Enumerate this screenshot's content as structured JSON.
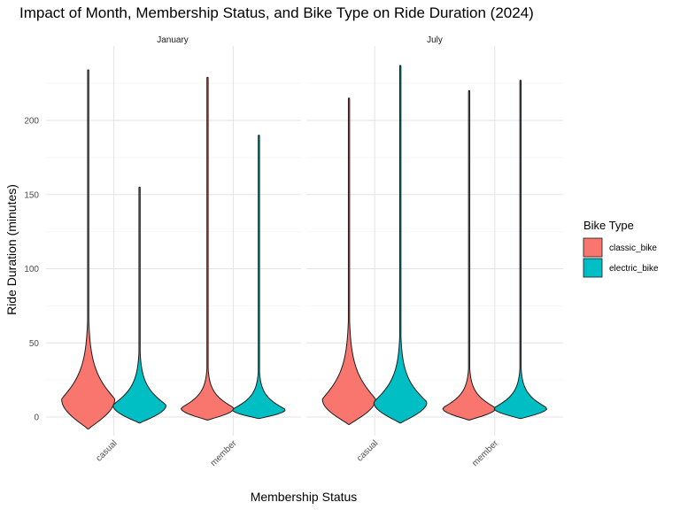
{
  "chart_data": {
    "type": "violin",
    "title": "Impact of Month, Membership Status, and Bike Type on Ride Duration (2024)",
    "xlabel": "Membership Status",
    "ylabel": "Ride Duration (minutes)",
    "ylim": [
      -8,
      240
    ],
    "yticks": [
      0,
      50,
      100,
      150,
      200
    ],
    "grid": true,
    "legend": {
      "title": "Bike Type",
      "placement": "right"
    },
    "categories": [
      "casual",
      "member"
    ],
    "facets": [
      {
        "label": "January",
        "violins": [
          {
            "category": "casual",
            "bike_type": "classic_bike",
            "min": -8,
            "max": 234,
            "mode": 12
          },
          {
            "category": "casual",
            "bike_type": "electric_bike",
            "min": -4,
            "max": 155,
            "mode": 8
          },
          {
            "category": "member",
            "bike_type": "classic_bike",
            "min": -2,
            "max": 229,
            "mode": 6
          },
          {
            "category": "member",
            "bike_type": "electric_bike",
            "min": -1,
            "max": 190,
            "mode": 5
          }
        ]
      },
      {
        "label": "July",
        "violins": [
          {
            "category": "casual",
            "bike_type": "classic_bike",
            "min": -5,
            "max": 215,
            "mode": 12
          },
          {
            "category": "casual",
            "bike_type": "electric_bike",
            "min": -4,
            "max": 237,
            "mode": 10
          },
          {
            "category": "member",
            "bike_type": "classic_bike",
            "min": -2,
            "max": 220,
            "mode": 6
          },
          {
            "category": "member",
            "bike_type": "electric_bike",
            "min": -1,
            "max": 227,
            "mode": 6
          }
        ]
      }
    ],
    "series": [
      {
        "name": "classic_bike",
        "color": "#F8766D"
      },
      {
        "name": "electric_bike",
        "color": "#00BFC4"
      }
    ]
  }
}
